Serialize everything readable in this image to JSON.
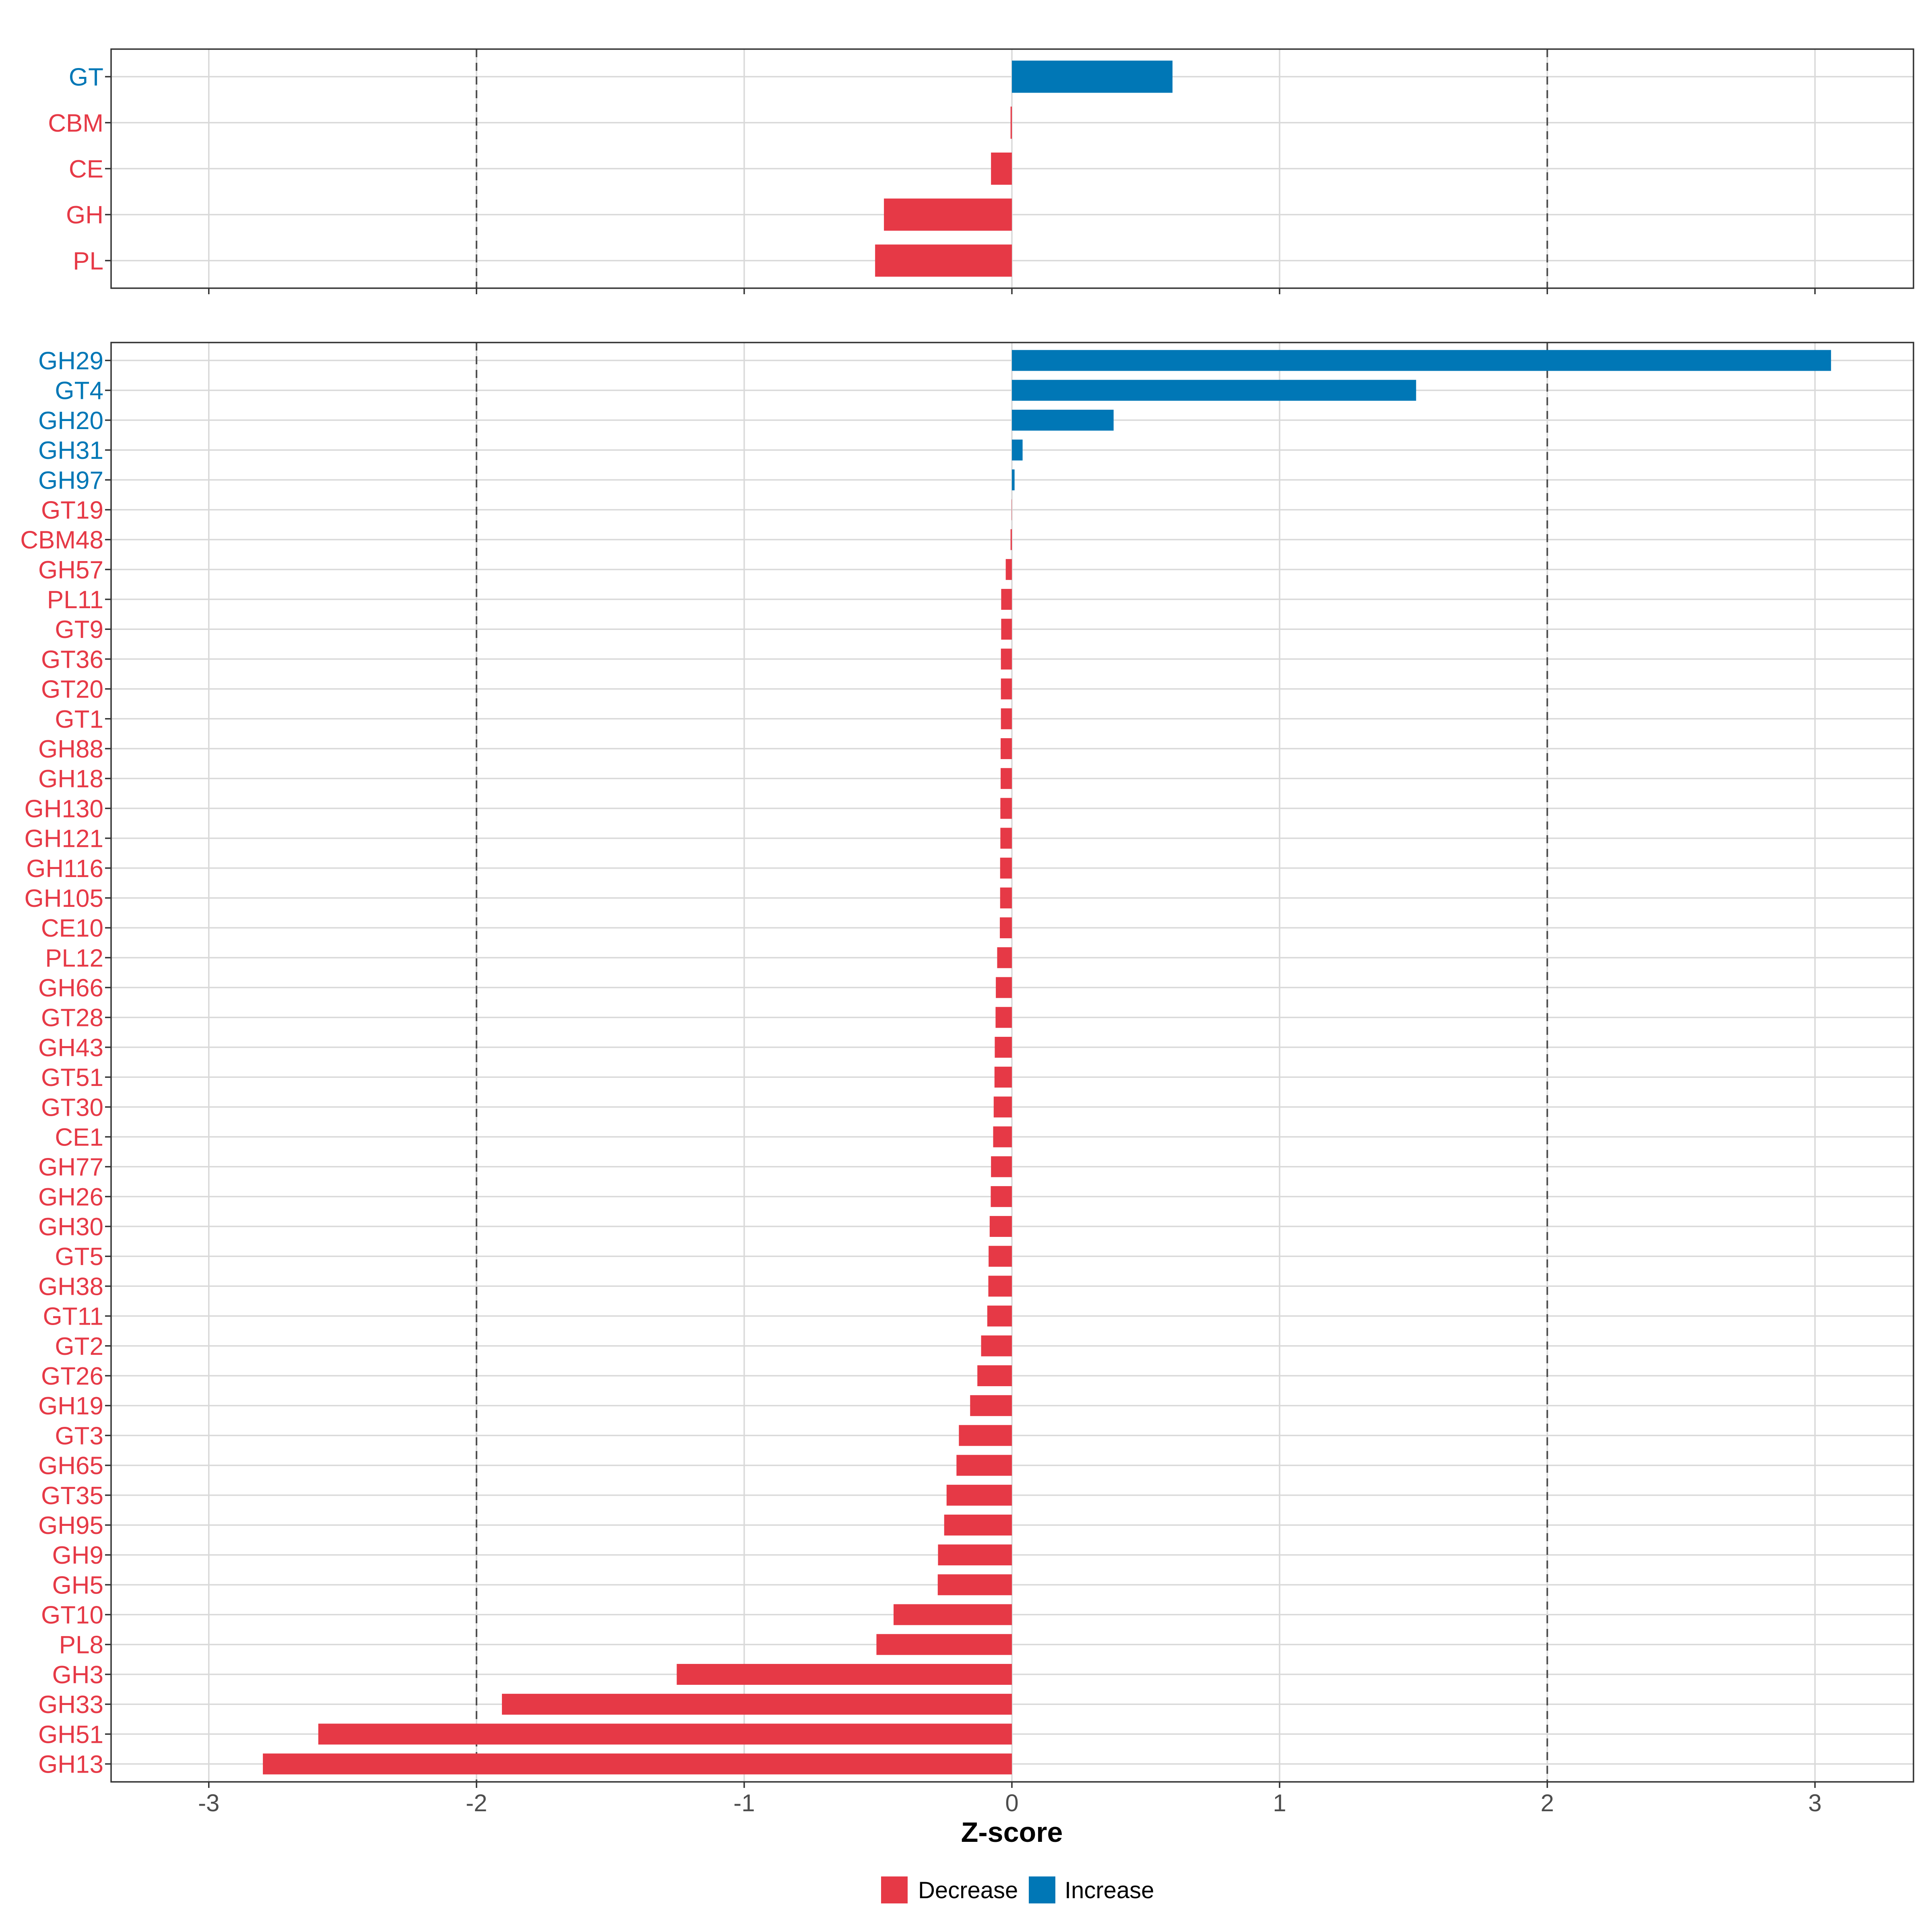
{
  "chart_data": {
    "type": "bar",
    "orientation": "horizontal",
    "xlabel": "Z-score",
    "xlim": [
      -3.365,
      3.368
    ],
    "xticks": [
      -3,
      -2,
      -1,
      0,
      1,
      2,
      3
    ],
    "xtick_labels": [
      "-3",
      "-2",
      "-1",
      "0",
      "1",
      "2",
      "3"
    ],
    "reference_lines": [
      -2,
      2
    ],
    "grid": true,
    "colors": {
      "decrease": "#E63946",
      "increase": "#0077B6"
    },
    "legend": {
      "position": "bottom",
      "entries": [
        {
          "label": "Decrease",
          "color": "#E63946"
        },
        {
          "label": "Increase",
          "color": "#0077B6"
        }
      ]
    },
    "panels": [
      {
        "categories": [
          "GT",
          "CBM",
          "CE",
          "GH",
          "PL"
        ],
        "values": [
          0.6,
          -0.005,
          -0.078,
          -0.478,
          -0.511
        ]
      },
      {
        "categories": [
          "GH29",
          "GT4",
          "GH20",
          "GH31",
          "GH97",
          "GT19",
          "CBM48",
          "GH57",
          "PL11",
          "GT9",
          "GT36",
          "GT20",
          "GT1",
          "GH88",
          "GH18",
          "GH130",
          "GH121",
          "GH116",
          "GH105",
          "CE10",
          "PL12",
          "GH66",
          "GT28",
          "GH43",
          "GT51",
          "GT30",
          "CE1",
          "GH77",
          "GH26",
          "GH30",
          "GT5",
          "GH38",
          "GT11",
          "GT2",
          "GT26",
          "GH19",
          "GT3",
          "GH65",
          "GT35",
          "GH95",
          "GH9",
          "GH5",
          "GT10",
          "PL8",
          "GH3",
          "GH33",
          "GH51",
          "GH13"
        ],
        "values": [
          3.06,
          1.51,
          0.38,
          0.04,
          0.01,
          -0.001,
          -0.005,
          -0.023,
          -0.04,
          -0.04,
          -0.041,
          -0.041,
          -0.041,
          -0.042,
          -0.042,
          -0.043,
          -0.043,
          -0.044,
          -0.044,
          -0.045,
          -0.055,
          -0.06,
          -0.061,
          -0.064,
          -0.065,
          -0.068,
          -0.07,
          -0.078,
          -0.079,
          -0.083,
          -0.087,
          -0.088,
          -0.092,
          -0.115,
          -0.129,
          -0.156,
          -0.198,
          -0.207,
          -0.244,
          -0.253,
          -0.276,
          -0.277,
          -0.442,
          -0.506,
          -1.252,
          -1.905,
          -2.591,
          -2.798
        ]
      }
    ]
  }
}
